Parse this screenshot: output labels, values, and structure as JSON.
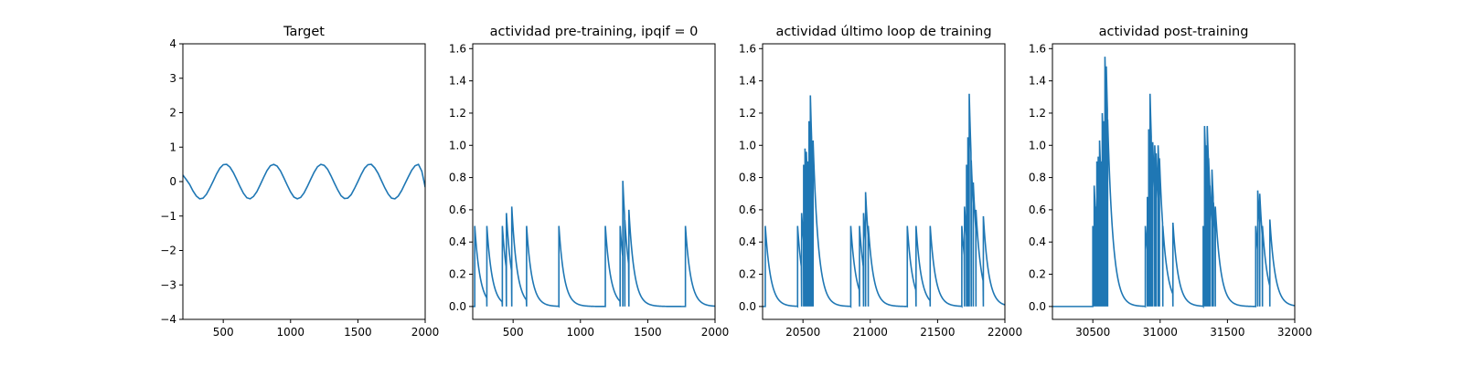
{
  "figure": {
    "line_color": "#1f77b4"
  },
  "chart_data": [
    {
      "type": "line",
      "title": "Target",
      "xlabel": "",
      "ylabel": "",
      "xlim": [
        200,
        2000
      ],
      "ylim": [
        -4,
        4
      ],
      "xticks": [
        500,
        1000,
        1500,
        2000
      ],
      "yticks": [
        -4,
        -3,
        -2,
        -1,
        0,
        1,
        2,
        3,
        4
      ],
      "grid": false,
      "series": [
        {
          "x": [
            200,
            225,
            250,
            275,
            300,
            325,
            350,
            375,
            400,
            425,
            450,
            475,
            500,
            525,
            550,
            575,
            600,
            625,
            650,
            675,
            700,
            725,
            750,
            775,
            800,
            825,
            850,
            875,
            900,
            925,
            950,
            975,
            1000,
            1025,
            1050,
            1075,
            1100,
            1125,
            1150,
            1175,
            1200,
            1225,
            1250,
            1275,
            1300,
            1325,
            1350,
            1375,
            1400,
            1425,
            1450,
            1475,
            1500,
            1525,
            1550,
            1575,
            1600,
            1625,
            1650,
            1675,
            1700,
            1725,
            1750,
            1775,
            1800,
            1825,
            1850,
            1875,
            1900,
            1925,
            1950,
            1975,
            2000
          ],
          "y": [
            0.19,
            0.06,
            -0.08,
            -0.27,
            -0.42,
            -0.5,
            -0.48,
            -0.37,
            -0.19,
            0.01,
            0.22,
            0.39,
            0.49,
            0.5,
            0.42,
            0.26,
            0.06,
            -0.15,
            -0.34,
            -0.47,
            -0.5,
            -0.43,
            -0.29,
            -0.09,
            0.12,
            0.32,
            0.46,
            0.5,
            0.45,
            0.31,
            0.11,
            -0.1,
            -0.3,
            -0.45,
            -0.5,
            -0.46,
            -0.33,
            -0.14,
            0.07,
            0.27,
            0.43,
            0.5,
            0.47,
            0.36,
            0.17,
            -0.04,
            -0.24,
            -0.41,
            -0.49,
            -0.48,
            -0.38,
            -0.2,
            0.0,
            0.21,
            0.39,
            0.49,
            0.5,
            0.4,
            0.24,
            0.03,
            -0.18,
            -0.36,
            -0.48,
            -0.5,
            -0.42,
            -0.26,
            -0.06,
            0.14,
            0.33,
            0.46,
            0.5,
            0.3,
            -0.16
          ]
        }
      ]
    },
    {
      "type": "line",
      "title": "actividad pre-training, ipqif = 0",
      "xlabel": "",
      "ylabel": "",
      "xlim": [
        200,
        2000
      ],
      "ylim": [
        -0.08,
        1.63
      ],
      "xticks": [
        500,
        1000,
        1500,
        2000
      ],
      "yticks": [
        0.0,
        0.2,
        0.4,
        0.6,
        0.8,
        1.0,
        1.2,
        1.4,
        1.6
      ],
      "grid": false,
      "series": [
        {
          "spikes": [
            [
              215,
              0.5
            ],
            [
              305,
              0.5
            ],
            [
              420,
              0.5
            ],
            [
              450,
              0.58
            ],
            [
              490,
              0.62
            ],
            [
              600,
              0.5
            ],
            [
              840,
              0.5
            ],
            [
              1185,
              0.5
            ],
            [
              1295,
              0.5
            ],
            [
              1315,
              0.78
            ],
            [
              1330,
              0.42
            ],
            [
              1360,
              0.6
            ],
            [
              1780,
              0.5
            ]
          ],
          "decay": 40
        }
      ]
    },
    {
      "type": "line",
      "title": "actividad último loop de training",
      "xlabel": "",
      "ylabel": "",
      "xlim": [
        20200,
        22000
      ],
      "ylim": [
        -0.08,
        1.63
      ],
      "xticks": [
        20500,
        21000,
        21500,
        22000
      ],
      "yticks": [
        0.0,
        0.2,
        0.4,
        0.6,
        0.8,
        1.0,
        1.2,
        1.4,
        1.6
      ],
      "grid": false,
      "series": [
        {
          "spikes": [
            [
              20220,
              0.5
            ],
            [
              20460,
              0.5
            ],
            [
              20490,
              0.58
            ],
            [
              20505,
              0.88
            ],
            [
              20515,
              0.98
            ],
            [
              20525,
              0.96
            ],
            [
              20535,
              0.9
            ],
            [
              20545,
              1.15
            ],
            [
              20555,
              1.31
            ],
            [
              20565,
              1.0
            ],
            [
              20575,
              1.03
            ],
            [
              20855,
              0.5
            ],
            [
              20920,
              0.5
            ],
            [
              20950,
              0.58
            ],
            [
              20965,
              0.71
            ],
            [
              20985,
              0.5
            ],
            [
              21275,
              0.5
            ],
            [
              21340,
              0.5
            ],
            [
              21445,
              0.5
            ],
            [
              21680,
              0.5
            ],
            [
              21700,
              0.62
            ],
            [
              21715,
              0.88
            ],
            [
              21725,
              1.05
            ],
            [
              21735,
              1.32
            ],
            [
              21750,
              0.9
            ],
            [
              21765,
              0.77
            ],
            [
              21785,
              0.6
            ],
            [
              21840,
              0.56
            ]
          ],
          "decay": 40
        }
      ]
    },
    {
      "type": "line",
      "title": "actividad post-training",
      "xlabel": "",
      "ylabel": "",
      "xlim": [
        30200,
        32000
      ],
      "ylim": [
        -0.08,
        1.63
      ],
      "xticks": [
        30500,
        31000,
        31500,
        32000
      ],
      "yticks": [
        0.0,
        0.2,
        0.4,
        0.6,
        0.8,
        1.0,
        1.2,
        1.4,
        1.6
      ],
      "grid": false,
      "series": [
        {
          "spikes": [
            [
              30500,
              0.5
            ],
            [
              30510,
              0.75
            ],
            [
              30520,
              0.62
            ],
            [
              30530,
              0.9
            ],
            [
              30540,
              0.93
            ],
            [
              30550,
              1.03
            ],
            [
              30560,
              0.9
            ],
            [
              30570,
              1.2
            ],
            [
              30580,
              1.15
            ],
            [
              30590,
              1.55
            ],
            [
              30600,
              1.49
            ],
            [
              30610,
              1.12
            ],
            [
              30890,
              0.5
            ],
            [
              30905,
              0.68
            ],
            [
              30915,
              1.1
            ],
            [
              30925,
              1.32
            ],
            [
              30935,
              1.0
            ],
            [
              30945,
              1.02
            ],
            [
              30960,
              1.0
            ],
            [
              30970,
              0.95
            ],
            [
              30985,
              1.0
            ],
            [
              30995,
              0.92
            ],
            [
              31020,
              0.5
            ],
            [
              31095,
              0.52
            ],
            [
              31320,
              0.5
            ],
            [
              31330,
              1.12
            ],
            [
              31340,
              1.0
            ],
            [
              31350,
              1.12
            ],
            [
              31360,
              0.92
            ],
            [
              31370,
              0.75
            ],
            [
              31385,
              0.85
            ],
            [
              31395,
              0.5
            ],
            [
              31410,
              0.62
            ],
            [
              31710,
              0.5
            ],
            [
              31725,
              0.72
            ],
            [
              31740,
              0.7
            ],
            [
              31760,
              0.5
            ],
            [
              31815,
              0.54
            ]
          ],
          "decay": 40
        }
      ]
    }
  ]
}
